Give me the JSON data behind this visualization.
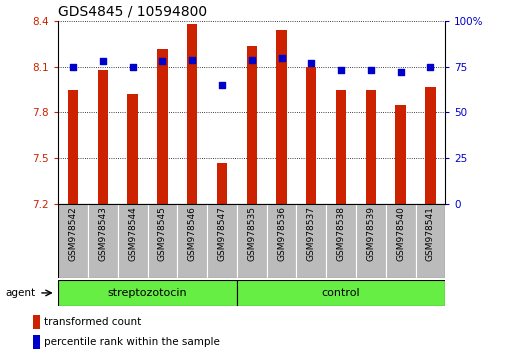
{
  "title": "GDS4845 / 10594800",
  "categories": [
    "GSM978542",
    "GSM978543",
    "GSM978544",
    "GSM978545",
    "GSM978546",
    "GSM978547",
    "GSM978535",
    "GSM978536",
    "GSM978537",
    "GSM978538",
    "GSM978539",
    "GSM978540",
    "GSM978541"
  ],
  "red_values": [
    7.95,
    8.08,
    7.92,
    8.22,
    8.38,
    7.47,
    8.24,
    8.34,
    8.1,
    7.95,
    7.95,
    7.85,
    7.97
  ],
  "blue_values": [
    75,
    78,
    75,
    78,
    79,
    65,
    79,
    80,
    77,
    73,
    73,
    72,
    75
  ],
  "y_min": 7.2,
  "y_max": 8.4,
  "y_ticks_left": [
    7.2,
    7.5,
    7.8,
    8.1,
    8.4
  ],
  "y_ticks_right": [
    0,
    25,
    50,
    75,
    100
  ],
  "group1_label": "streptozotocin",
  "group2_label": "control",
  "group1_indices": [
    0,
    1,
    2,
    3,
    4,
    5
  ],
  "group2_indices": [
    6,
    7,
    8,
    9,
    10,
    11,
    12
  ],
  "legend1_label": "transformed count",
  "legend2_label": "percentile rank within the sample",
  "agent_label": "agent",
  "bar_color": "#cc2200",
  "dot_color": "#0000cc",
  "group_bg_color": "#66ee44",
  "tick_label_bg": "#bbbbbb",
  "title_fontsize": 10,
  "tick_fontsize": 7.5,
  "label_fontsize": 7.5,
  "bar_width": 0.35,
  "dot_size": 22,
  "base_value": 7.2,
  "fig_width": 5.06,
  "fig_height": 3.54,
  "dpi": 100
}
